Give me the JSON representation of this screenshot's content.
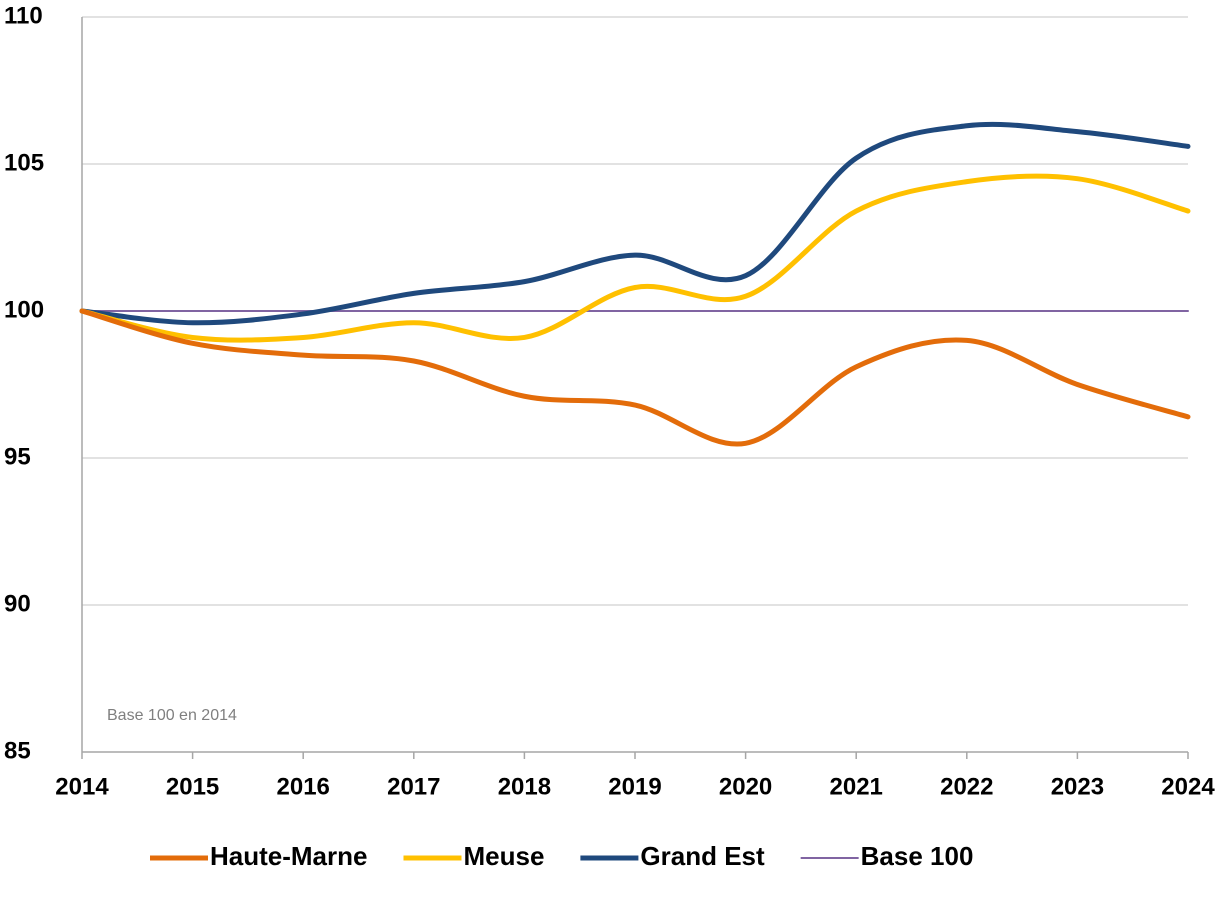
{
  "chart_data": {
    "type": "line",
    "annotation": "Base 100 en 2014",
    "x": [
      2014,
      2015,
      2016,
      2017,
      2018,
      2019,
      2020,
      2021,
      2022,
      2023,
      2024
    ],
    "xlim": [
      2014,
      2024
    ],
    "xticks": [
      2014,
      2015,
      2016,
      2017,
      2018,
      2019,
      2020,
      2021,
      2022,
      2023,
      2024
    ],
    "ylim": [
      85,
      110
    ],
    "yticks": [
      85,
      90,
      95,
      100,
      105,
      110
    ],
    "grid": true,
    "legend": "bottom",
    "series": [
      {
        "name": "Haute-Marne",
        "color": "#e36c0a",
        "width": 5,
        "smooth": true,
        "values": [
          100,
          98.9,
          98.5,
          98.3,
          97.1,
          96.8,
          95.5,
          98.1,
          99.0,
          97.5,
          96.4
        ]
      },
      {
        "name": "Meuse",
        "color": "#ffc000",
        "width": 5,
        "smooth": true,
        "values": [
          100,
          99.1,
          99.1,
          99.6,
          99.1,
          100.8,
          100.5,
          103.4,
          104.4,
          104.5,
          103.4
        ]
      },
      {
        "name": "Grand Est",
        "color": "#1f497d",
        "width": 5,
        "smooth": true,
        "values": [
          100,
          99.6,
          99.9,
          100.6,
          101.0,
          101.9,
          101.2,
          105.2,
          106.3,
          106.1,
          105.6
        ]
      },
      {
        "name": "Base 100",
        "color": "#8064a2",
        "width": 2,
        "smooth": false,
        "values": [
          100,
          100,
          100,
          100,
          100,
          100,
          100,
          100,
          100,
          100,
          100
        ]
      }
    ]
  }
}
